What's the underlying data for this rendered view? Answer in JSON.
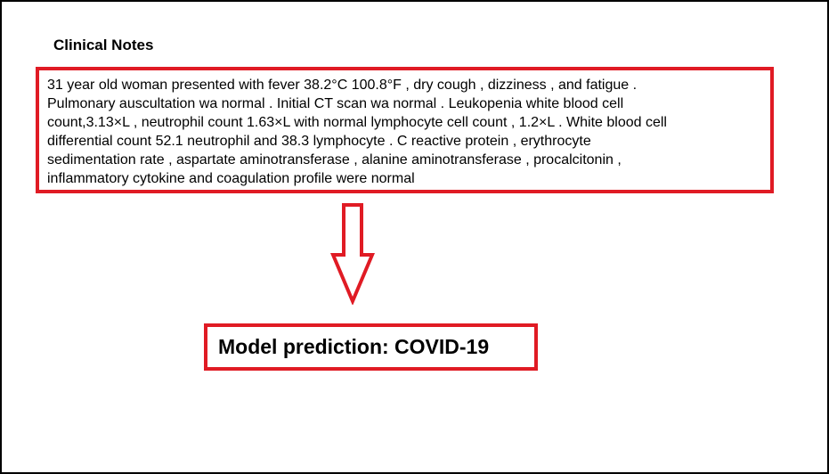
{
  "colors": {
    "accent_red": "#e01b24",
    "border_black": "#000000",
    "background": "#ffffff"
  },
  "section": {
    "title": "Clinical Notes"
  },
  "notes": {
    "lines": [
      "31 year old woman presented with fever 38.2°C 100.8°F , dry cough , dizziness , and fatigue .",
      "Pulmonary auscultation wa normal . Initial CT scan wa normal . Leukopenia white blood cell",
      "count,3.13×L , neutrophil count 1.63×L with normal lymphocyte cell count , 1.2×L . White blood cell",
      "differential count 52.1 neutrophil and 38.3 lymphocyte . C reactive protein , erythrocyte",
      "sedimentation rate , aspartate aminotransferase , alanine aminotransferase , procalcitonin ,",
      "inflammatory cytokine and coagulation profile were normal"
    ]
  },
  "arrow": {
    "icon": "down-arrow-icon",
    "color": "#e01b24"
  },
  "prediction": {
    "text": "Model prediction: COVID-19"
  }
}
